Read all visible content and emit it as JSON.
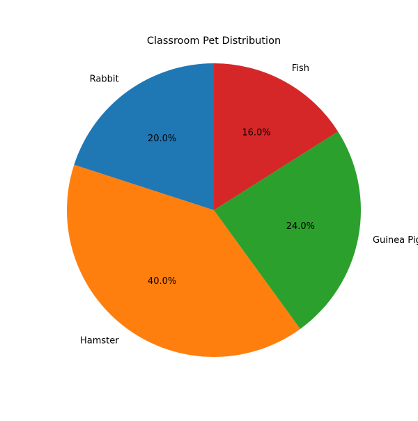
{
  "chart_data": {
    "type": "pie",
    "title": "Classroom Pet Distribution",
    "categories": [
      "Rabbit",
      "Hamster",
      "Guinea Pig",
      "Fish"
    ],
    "values": [
      20,
      40,
      24,
      16
    ],
    "percent_labels": [
      "20.0%",
      "40.0%",
      "24.0%",
      "16.0%"
    ],
    "colors": [
      "#1f77b4",
      "#ff7f0e",
      "#2ca02c",
      "#d62728"
    ],
    "start_angle_deg": 90,
    "direction": "counterclockwise",
    "legend": "none"
  }
}
